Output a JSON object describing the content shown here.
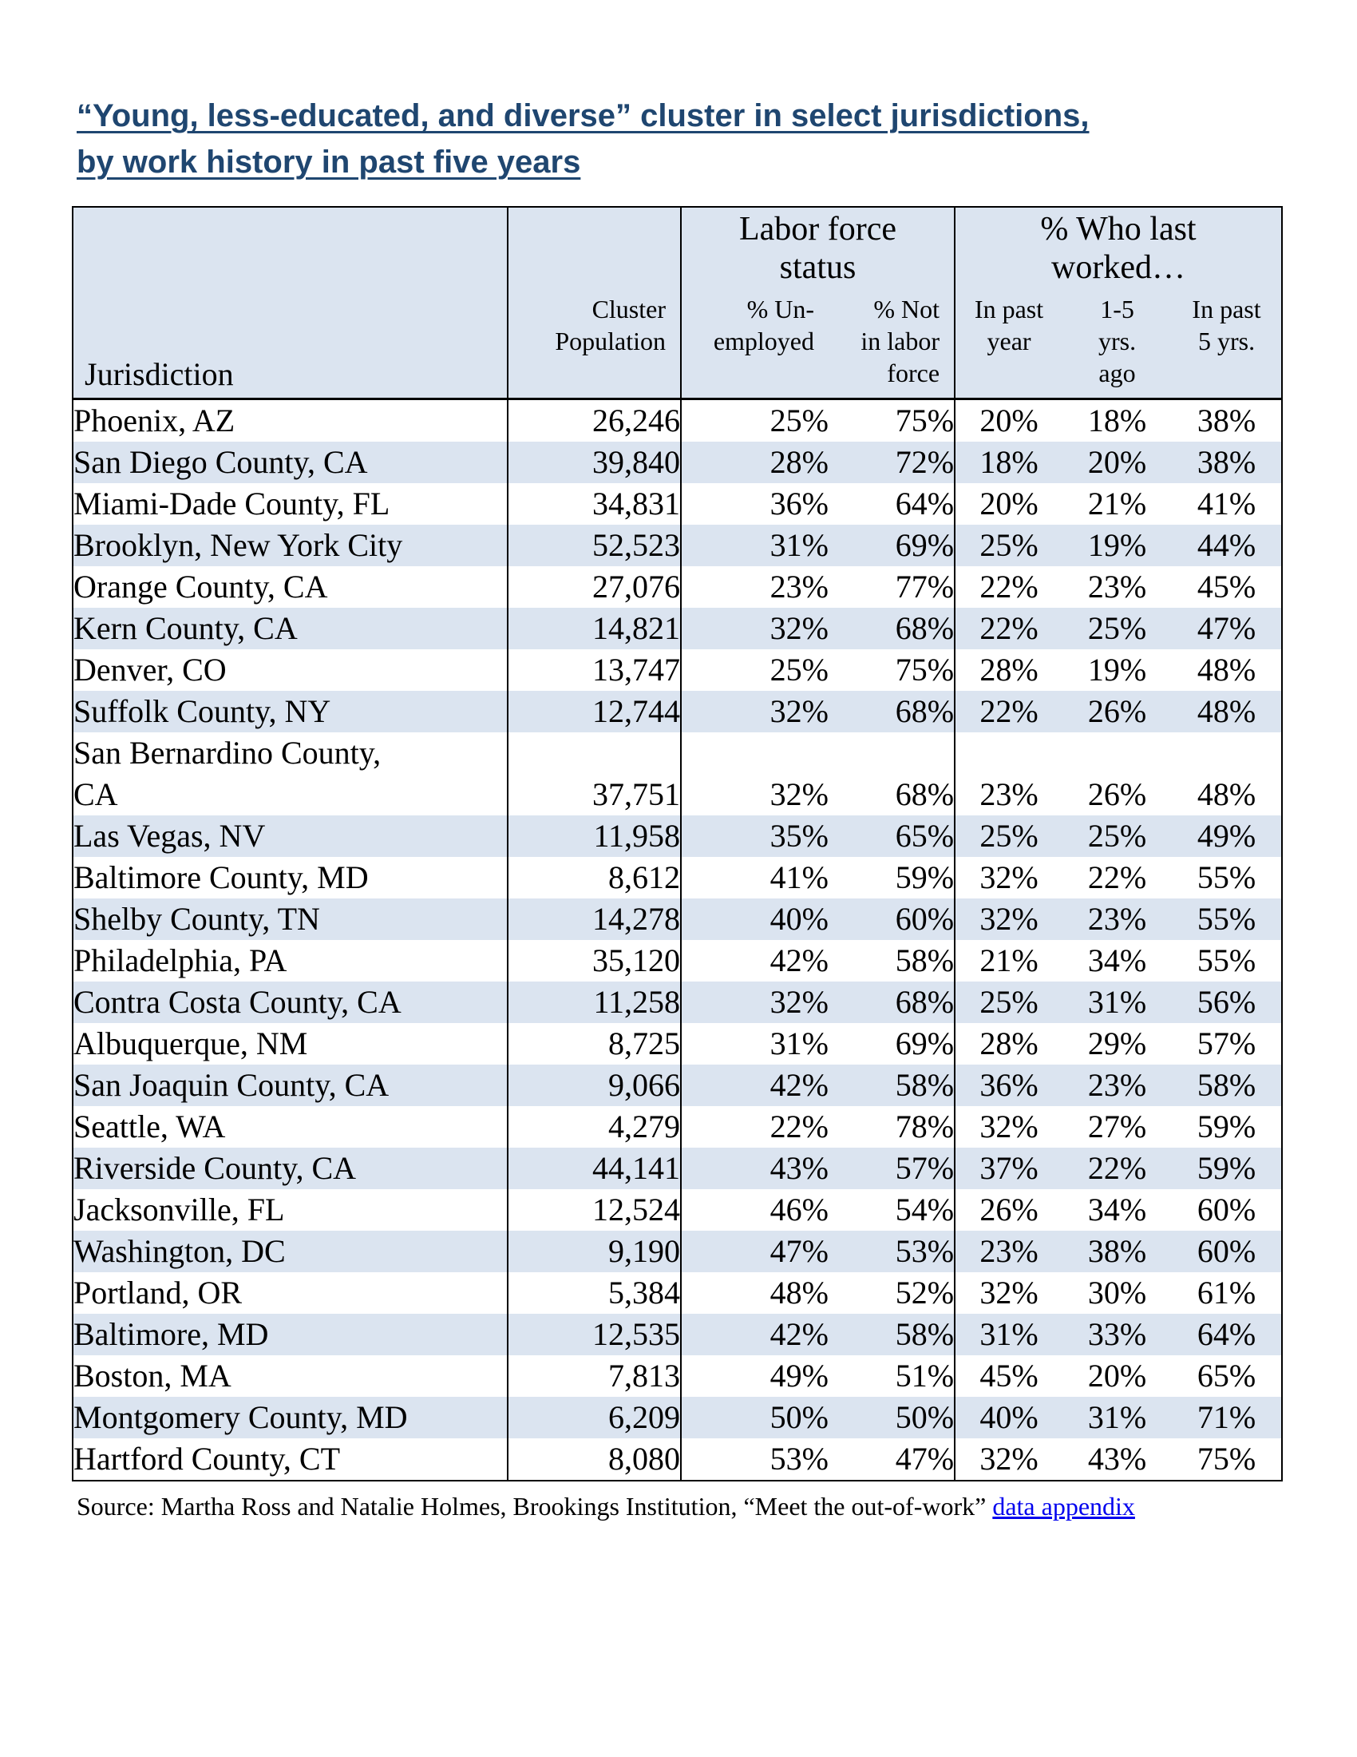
{
  "title": {
    "text": "“Young, less-educated, and diverse” cluster in select jurisdictions,\nby work history in past five years"
  },
  "colors": {
    "title_navy": "#1F4670",
    "row_stripe_blue": "#DBE4F0",
    "header_blue": "#DBE4F0",
    "link_blue": "#0000EE",
    "border_black": "#000000"
  },
  "table": {
    "header": {
      "jurisdiction": "Jurisdiction",
      "population": "Cluster\nPopulation",
      "groups": [
        {
          "label": "Labor force\nstatus",
          "cols": [
            "% Un-\nemployed",
            "% Not\nin labor\nforce"
          ]
        },
        {
          "label": "% Who last\nworked…",
          "cols": [
            "In past\nyear",
            "1-5\nyrs.\nago",
            "In past\n5 yrs."
          ]
        }
      ]
    },
    "rows": [
      {
        "name": "Phoenix, AZ",
        "population": "26,246",
        "unemployed": "25%",
        "not_in_labor_force": "75%",
        "past_year": "20%",
        "one_to_five": "18%",
        "past_five": "38%"
      },
      {
        "name": "San Diego County, CA",
        "population": "39,840",
        "unemployed": "28%",
        "not_in_labor_force": "72%",
        "past_year": "18%",
        "one_to_five": "20%",
        "past_five": "38%"
      },
      {
        "name": "Miami-Dade County, FL",
        "population": "34,831",
        "unemployed": "36%",
        "not_in_labor_force": "64%",
        "past_year": "20%",
        "one_to_five": "21%",
        "past_five": "41%"
      },
      {
        "name": "Brooklyn, New York City",
        "population": "52,523",
        "unemployed": "31%",
        "not_in_labor_force": "69%",
        "past_year": "25%",
        "one_to_five": "19%",
        "past_five": "44%"
      },
      {
        "name": "Orange County, CA",
        "population": "27,076",
        "unemployed": "23%",
        "not_in_labor_force": "77%",
        "past_year": "22%",
        "one_to_five": "23%",
        "past_five": "45%"
      },
      {
        "name": "Kern County, CA",
        "population": "14,821",
        "unemployed": "32%",
        "not_in_labor_force": "68%",
        "past_year": "22%",
        "one_to_five": "25%",
        "past_five": "47%"
      },
      {
        "name": "Denver, CO",
        "population": "13,747",
        "unemployed": "25%",
        "not_in_labor_force": "75%",
        "past_year": "28%",
        "one_to_five": "19%",
        "past_five": "48%"
      },
      {
        "name": "Suffolk County, NY",
        "population": "12,744",
        "unemployed": "32%",
        "not_in_labor_force": "68%",
        "past_year": "22%",
        "one_to_five": "26%",
        "past_five": "48%"
      },
      {
        "name": "San Bernardino County,\nCA",
        "population": "37,751",
        "unemployed": "32%",
        "not_in_labor_force": "68%",
        "past_year": "23%",
        "one_to_five": "26%",
        "past_five": "48%"
      },
      {
        "name": "Las Vegas, NV",
        "population": "11,958",
        "unemployed": "35%",
        "not_in_labor_force": "65%",
        "past_year": "25%",
        "one_to_five": "25%",
        "past_five": "49%"
      },
      {
        "name": "Baltimore County, MD",
        "population": "8,612",
        "unemployed": "41%",
        "not_in_labor_force": "59%",
        "past_year": "32%",
        "one_to_five": "22%",
        "past_five": "55%"
      },
      {
        "name": "Shelby County, TN",
        "population": "14,278",
        "unemployed": "40%",
        "not_in_labor_force": "60%",
        "past_year": "32%",
        "one_to_five": "23%",
        "past_five": "55%"
      },
      {
        "name": "Philadelphia, PA",
        "population": "35,120",
        "unemployed": "42%",
        "not_in_labor_force": "58%",
        "past_year": "21%",
        "one_to_five": "34%",
        "past_five": "55%"
      },
      {
        "name": "Contra Costa County, CA",
        "population": "11,258",
        "unemployed": "32%",
        "not_in_labor_force": "68%",
        "past_year": "25%",
        "one_to_five": "31%",
        "past_five": "56%"
      },
      {
        "name": "Albuquerque, NM",
        "population": "8,725",
        "unemployed": "31%",
        "not_in_labor_force": "69%",
        "past_year": "28%",
        "one_to_five": "29%",
        "past_five": "57%"
      },
      {
        "name": "San Joaquin County, CA",
        "population": "9,066",
        "unemployed": "42%",
        "not_in_labor_force": "58%",
        "past_year": "36%",
        "one_to_five": "23%",
        "past_five": "58%"
      },
      {
        "name": "Seattle, WA",
        "population": "4,279",
        "unemployed": "22%",
        "not_in_labor_force": "78%",
        "past_year": "32%",
        "one_to_five": "27%",
        "past_five": "59%"
      },
      {
        "name": "Riverside County, CA",
        "population": "44,141",
        "unemployed": "43%",
        "not_in_labor_force": "57%",
        "past_year": "37%",
        "one_to_five": "22%",
        "past_five": "59%"
      },
      {
        "name": "Jacksonville, FL",
        "population": "12,524",
        "unemployed": "46%",
        "not_in_labor_force": "54%",
        "past_year": "26%",
        "one_to_five": "34%",
        "past_five": "60%"
      },
      {
        "name": "Washington, DC",
        "population": "9,190",
        "unemployed": "47%",
        "not_in_labor_force": "53%",
        "past_year": "23%",
        "one_to_five": "38%",
        "past_five": "60%"
      },
      {
        "name": "Portland, OR",
        "population": "5,384",
        "unemployed": "48%",
        "not_in_labor_force": "52%",
        "past_year": "32%",
        "one_to_five": "30%",
        "past_five": "61%"
      },
      {
        "name": "Baltimore, MD",
        "population": "12,535",
        "unemployed": "42%",
        "not_in_labor_force": "58%",
        "past_year": "31%",
        "one_to_five": "33%",
        "past_five": "64%"
      },
      {
        "name": "Boston, MA",
        "population": "7,813",
        "unemployed": "49%",
        "not_in_labor_force": "51%",
        "past_year": "45%",
        "one_to_five": "20%",
        "past_five": "65%"
      },
      {
        "name": "Montgomery County, MD",
        "population": "6,209",
        "unemployed": "50%",
        "not_in_labor_force": "50%",
        "past_year": "40%",
        "one_to_five": "31%",
        "past_five": "71%"
      },
      {
        "name": "Hartford County, CT",
        "population": "8,080",
        "unemployed": "53%",
        "not_in_labor_force": "47%",
        "past_year": "32%",
        "one_to_five": "43%",
        "past_five": "75%"
      }
    ]
  },
  "source": {
    "prefix": "Source: Martha Ross and Natalie Holmes, Brookings Institution, “Meet the out-of-work” ",
    "link_label": "data appendix"
  }
}
